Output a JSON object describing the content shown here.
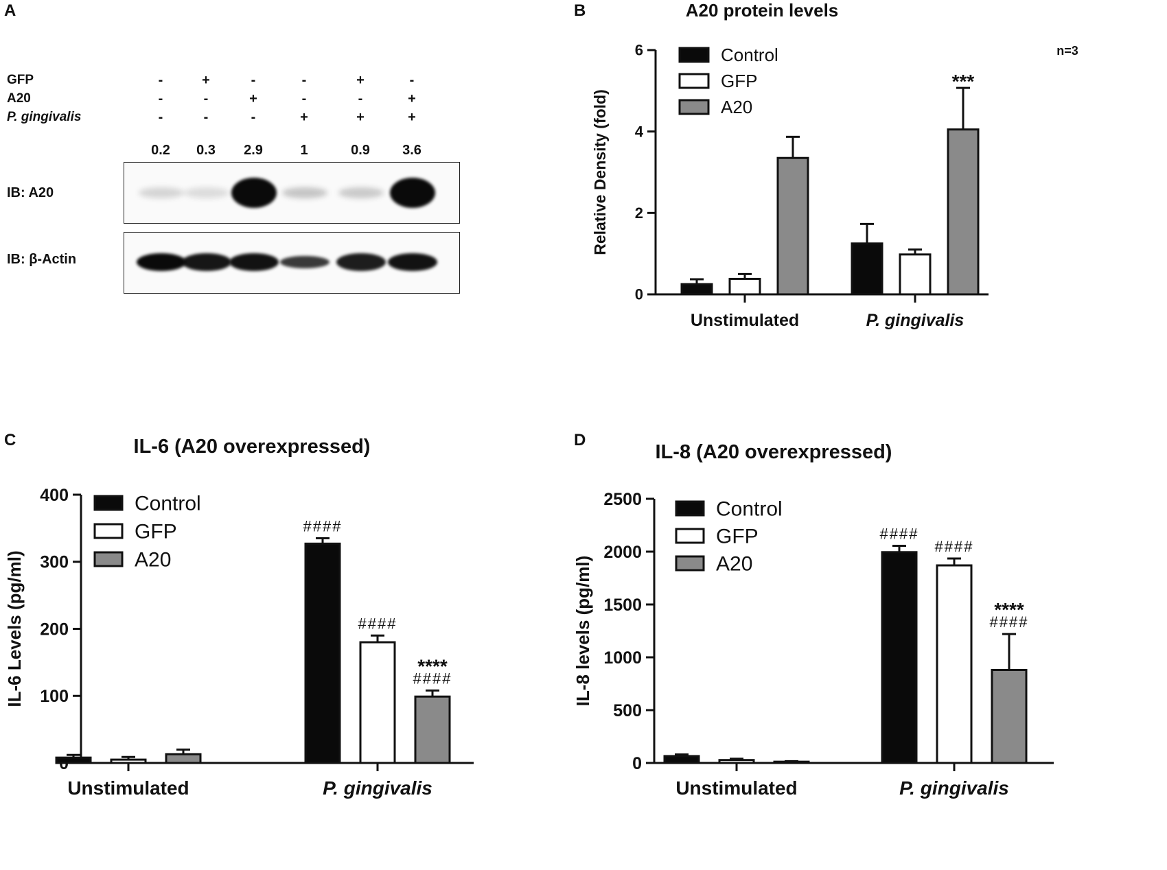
{
  "panel_letters": {
    "a": "A",
    "b": "B",
    "c": "C",
    "d": "D"
  },
  "western_blot": {
    "row_labels": {
      "gfp": "GFP",
      "a20": "A20",
      "pg": "P. gingivalis"
    },
    "lanes": [
      {
        "gfp": "-",
        "a20": "-",
        "pg": "-",
        "density": "0.2",
        "a20_band": 0.15,
        "actin_band": 1.0
      },
      {
        "gfp": "+",
        "a20": "-",
        "pg": "-",
        "density": "0.3",
        "a20_band": 0.12,
        "actin_band": 0.95
      },
      {
        "gfp": "-",
        "a20": "+",
        "pg": "-",
        "density": "2.9",
        "a20_band": 1.0,
        "actin_band": 0.97
      },
      {
        "gfp": "-",
        "a20": "-",
        "pg": "+",
        "density": "1",
        "a20_band": 0.22,
        "actin_band": 0.8
      },
      {
        "gfp": "+",
        "a20": "-",
        "pg": "+",
        "density": "0.9",
        "a20_band": 0.2,
        "actin_band": 0.92
      },
      {
        "gfp": "-",
        "a20": "+",
        "pg": "+",
        "density": "3.6",
        "a20_band": 1.0,
        "actin_band": 0.97
      }
    ],
    "ib_labels": {
      "a20": "IB: A20",
      "actin": "IB: β-Actin"
    }
  },
  "colors": {
    "control": "#0a0a0a",
    "gfp": "#ffffff",
    "a20": "#8a8a8a",
    "axis": "#111111"
  },
  "chart_data": [
    {
      "id": "B",
      "type": "bar",
      "title": "A20 protein levels",
      "ylabel": "Relative Density (fold)",
      "xlabel": "",
      "ylim": [
        0,
        6
      ],
      "yticks": [
        0,
        2,
        4,
        6
      ],
      "categories": [
        "Unstimulated",
        "P. gingivalis"
      ],
      "categories_italic": [
        false,
        true
      ],
      "series": [
        {
          "name": "Control",
          "color": "control",
          "values": [
            0.25,
            1.25
          ],
          "errors": [
            0.12,
            0.48
          ]
        },
        {
          "name": "GFP",
          "color": "gfp",
          "values": [
            0.38,
            0.98
          ],
          "errors": [
            0.12,
            0.12
          ]
        },
        {
          "name": "A20",
          "color": "a20",
          "values": [
            3.35,
            4.05
          ],
          "errors": [
            0.52,
            1.02
          ]
        }
      ],
      "annotations": [
        {
          "category": 1,
          "series": 2,
          "lines": [
            "***"
          ]
        }
      ],
      "note": "n=3",
      "legend": "top-left"
    },
    {
      "id": "C",
      "type": "bar",
      "title": "IL-6 (A20 overexpressed)",
      "ylabel": "IL-6 Levels (pg/ml)",
      "xlabel": "",
      "ylim": [
        0,
        400
      ],
      "yticks": [
        0,
        100,
        200,
        300,
        400
      ],
      "categories": [
        "Unstimulated",
        "P. gingivalis"
      ],
      "categories_italic": [
        false,
        true
      ],
      "series": [
        {
          "name": "Control",
          "color": "control",
          "values": [
            8,
            327
          ],
          "errors": [
            4,
            8
          ]
        },
        {
          "name": "GFP",
          "color": "gfp",
          "values": [
            5,
            180
          ],
          "errors": [
            4,
            10
          ]
        },
        {
          "name": "A20",
          "color": "a20",
          "values": [
            13,
            99
          ],
          "errors": [
            7,
            9
          ]
        }
      ],
      "annotations": [
        {
          "category": 1,
          "series": 0,
          "lines": [
            "####"
          ]
        },
        {
          "category": 1,
          "series": 1,
          "lines": [
            "####"
          ]
        },
        {
          "category": 1,
          "series": 2,
          "lines": [
            "****",
            "####"
          ]
        }
      ],
      "note": "",
      "legend": "top-left"
    },
    {
      "id": "D",
      "type": "bar",
      "title": "IL-8 (A20 overexpressed)",
      "ylabel": "IL-8 levels (pg/ml)",
      "xlabel": "",
      "ylim": [
        0,
        2500
      ],
      "yticks": [
        0,
        500,
        1000,
        1500,
        2000,
        2500
      ],
      "categories": [
        "Unstimulated",
        "P. gingivalis"
      ],
      "categories_italic": [
        false,
        true
      ],
      "series": [
        {
          "name": "Control",
          "color": "control",
          "values": [
            65,
            1995
          ],
          "errors": [
            15,
            60
          ]
        },
        {
          "name": "GFP",
          "color": "gfp",
          "values": [
            28,
            1870
          ],
          "errors": [
            12,
            65
          ]
        },
        {
          "name": "A20",
          "color": "a20",
          "values": [
            12,
            880
          ],
          "errors": [
            5,
            340
          ]
        }
      ],
      "annotations": [
        {
          "category": 1,
          "series": 0,
          "lines": [
            "####"
          ]
        },
        {
          "category": 1,
          "series": 1,
          "lines": [
            "####"
          ]
        },
        {
          "category": 1,
          "series": 2,
          "lines": [
            "****",
            "####"
          ]
        }
      ],
      "note": "",
      "legend": "top-left"
    }
  ]
}
